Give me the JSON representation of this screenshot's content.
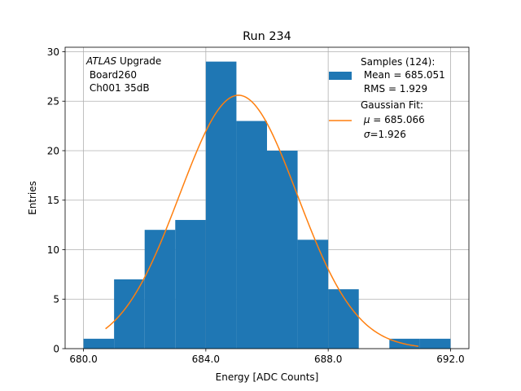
{
  "chart_data": {
    "type": "bar",
    "title": "Run 234",
    "xlabel": "Energy [ADC Counts]",
    "ylabel": "Entries",
    "xlim": [
      679.4,
      692.6
    ],
    "ylim": [
      0,
      30.45
    ],
    "grid": true,
    "xticks": [
      680,
      684,
      688,
      692
    ],
    "xtick_labels": [
      "680.0",
      "684.0",
      "688.0",
      "692.0"
    ],
    "yticks": [
      0,
      5,
      10,
      15,
      20,
      25,
      30
    ],
    "ytick_labels": [
      "0",
      "5",
      "10",
      "15",
      "20",
      "25",
      "30"
    ],
    "histogram": {
      "name": "Samples (124):",
      "color": "#1f77b4",
      "bin_edges": [
        680,
        681,
        682,
        683,
        684,
        685,
        686,
        687,
        688,
        689,
        690,
        691,
        692
      ],
      "counts": [
        1,
        7,
        12,
        13,
        29,
        23,
        20,
        11,
        6,
        0,
        1,
        1
      ]
    },
    "fit": {
      "name": "Gaussian Fit:",
      "color": "#ff7f0e",
      "mu": 685.066,
      "sigma": 1.926,
      "peak": 25.6,
      "x_range": [
        680.72,
        690.95
      ]
    },
    "annotation": {
      "italic": "ATLAS",
      "rest": " Upgrade",
      "line2": " Board260",
      "line3": " Ch001 35dB"
    },
    "legend": {
      "position": "top-right",
      "hist_label": "Samples (124):",
      "hist_mean": " Mean = 685.051",
      "hist_rms": " RMS = 1.929",
      "fit_label": "Gaussian Fit:",
      "fit_mu_symbol": "μ",
      "fit_mu_value": " = 685.066",
      "fit_sigma_symbol": "σ",
      "fit_sigma_value": "=1.926"
    }
  }
}
